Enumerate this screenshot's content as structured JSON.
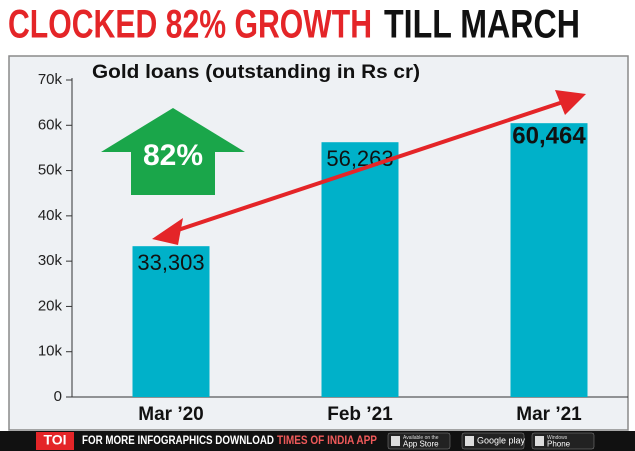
{
  "chart_data": {
    "type": "bar",
    "title": "CLOCKED 82% GROWTH",
    "title_suffix": "TILL MARCH",
    "subtitle": "Gold loans (outstanding in Rs cr)",
    "annotation": "82%",
    "categories": [
      "Mar ’20",
      "Feb ’21",
      "Mar ’21"
    ],
    "values": [
      33303,
      56263,
      60464
    ],
    "value_labels": [
      "33,303",
      "56,263",
      "60,464"
    ],
    "color": "#00b1c9",
    "ylim": [
      0,
      70000
    ],
    "yticks": [
      0,
      {
        "value": 10000,
        "label": "10k"
      },
      {
        "value": 20000,
        "label": "20k"
      },
      {
        "value": 30000,
        "label": "30k"
      },
      {
        "value": 40000,
        "label": "40k"
      },
      {
        "value": 50000,
        "label": "50k"
      },
      {
        "value": 60000,
        "label": "60k"
      },
      {
        "value": 70000,
        "label": "70k"
      }
    ],
    "grid": false
  },
  "footer": {
    "brand": "TOI",
    "text": "FOR MORE  INFOGRAPHICS DOWNLOAD",
    "app": "TIMES OF INDIA  APP",
    "badges": [
      {
        "small": "Available on the",
        "big": "App Store"
      },
      {
        "small": "",
        "big": "Google play"
      },
      {
        "small": "Windows",
        "big": "Phone"
      }
    ]
  }
}
